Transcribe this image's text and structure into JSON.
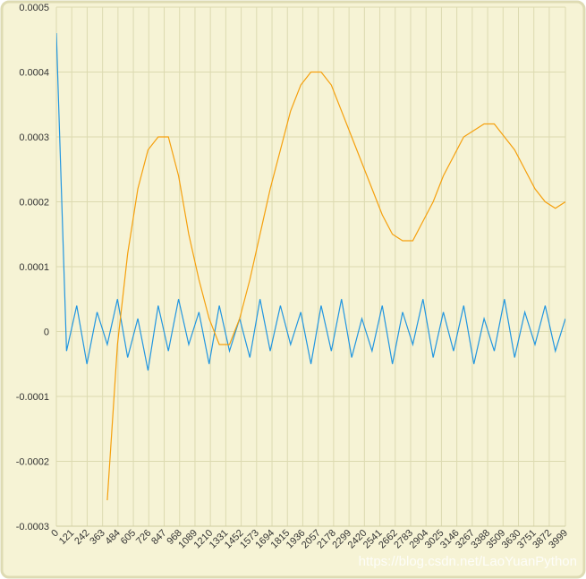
{
  "chart_data": {
    "type": "line",
    "x": [
      0,
      80,
      160,
      240,
      320,
      400,
      480,
      560,
      640,
      720,
      800,
      880,
      960,
      1040,
      1120,
      1200,
      1280,
      1360,
      1440,
      1520,
      1600,
      1680,
      1760,
      1840,
      1920,
      2000,
      2080,
      2160,
      2240,
      2320,
      2400,
      2480,
      2560,
      2640,
      2720,
      2800,
      2880,
      2960,
      3040,
      3120,
      3200,
      3280,
      3360,
      3440,
      3520,
      3600,
      3680,
      3760,
      3840,
      3920,
      3999
    ],
    "series": [
      {
        "color": "#2196e0",
        "values": [
          0.00046,
          -3e-05,
          4e-05,
          -5e-05,
          3e-05,
          -2e-05,
          5e-05,
          -4e-05,
          2e-05,
          -6e-05,
          4e-05,
          -3e-05,
          5e-05,
          -2e-05,
          3e-05,
          -5e-05,
          4e-05,
          -3e-05,
          2e-05,
          -4e-05,
          5e-05,
          -3e-05,
          4e-05,
          -2e-05,
          3e-05,
          -5e-05,
          4e-05,
          -3e-05,
          5e-05,
          -4e-05,
          2e-05,
          -3e-05,
          4e-05,
          -5e-05,
          3e-05,
          -2e-05,
          5e-05,
          -4e-05,
          3e-05,
          -3e-05,
          4e-05,
          -5e-05,
          2e-05,
          -3e-05,
          5e-05,
          -4e-05,
          3e-05,
          -2e-05,
          4e-05,
          -3e-05,
          2e-05
        ]
      },
      {
        "color": "#f5a00d",
        "values": [
          null,
          null,
          null,
          null,
          null,
          -0.00026,
          -2e-05,
          0.00012,
          0.00022,
          0.00028,
          0.0003,
          0.0003,
          0.00024,
          0.00015,
          8e-05,
          2e-05,
          -2e-05,
          -2e-05,
          2e-05,
          8e-05,
          0.00015,
          0.00022,
          0.00028,
          0.00034,
          0.00038,
          0.0004,
          0.0004,
          0.00038,
          0.00034,
          0.0003,
          0.00026,
          0.00022,
          0.00018,
          0.00015,
          0.00014,
          0.00014,
          0.00017,
          0.0002,
          0.00024,
          0.00027,
          0.0003,
          0.00031,
          0.00032,
          0.00032,
          0.0003,
          0.00028,
          0.00025,
          0.00022,
          0.0002,
          0.00019,
          0.0002
        ]
      }
    ],
    "xlim": [
      0,
      3999
    ],
    "xticks": [
      0,
      121,
      242,
      363,
      484,
      605,
      726,
      847,
      968,
      1089,
      1210,
      1331,
      1452,
      1573,
      1694,
      1815,
      1936,
      2057,
      2178,
      2299,
      2420,
      2541,
      2662,
      2783,
      2904,
      3025,
      3146,
      3267,
      3388,
      3509,
      3630,
      3751,
      3872,
      3999
    ],
    "ylim": [
      -0.0003,
      0.0005
    ],
    "yticks": [
      0.0005,
      0.0004,
      0.0003,
      0.0002,
      0.0001,
      0,
      -0.0001,
      -0.0002,
      -0.0003
    ],
    "grid": true,
    "watermark": "https://blog.csdn.net/LaoYuanPython"
  }
}
